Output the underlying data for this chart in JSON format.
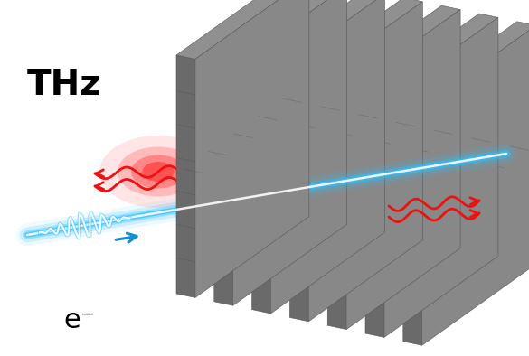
{
  "bg_color": "#ffffff",
  "thz_label": "THz",
  "electron_label": "e⁻",
  "thz_fontsize": 28,
  "electron_fontsize": 22,
  "grating_color_front": "#6a6a6a",
  "grating_color_side": "#888888",
  "grating_color_top": "#909090",
  "grating_color_dark": "#555555",
  "num_slabs": 7,
  "beam_color": "#30c0ff",
  "beam_glow_color": "#60d8ff",
  "arrow_color": "#1090d0",
  "rad_color": "#ee1111"
}
